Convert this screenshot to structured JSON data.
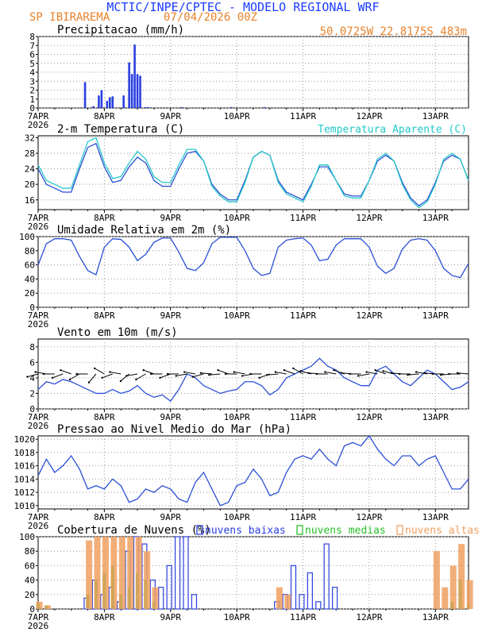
{
  "header": {
    "line1": "MCTIC/INPE/CPTEC - MODELO REGIONAL WRF",
    "station": "SP IBIRAREMA",
    "date": "07/04/2026 00Z",
    "coords": "50.0725W 22.8175S 483m"
  },
  "colors": {
    "title_blue": "#1a3cff",
    "header_orange": "#e8822a",
    "series_blue": "#2a4fd6",
    "series_cyan": "#25c8c8",
    "bar_blue": "#2a3fe0",
    "cloud_low": "#2a3fe0",
    "cloud_mid": "#28c028",
    "cloud_high": "#f0a060",
    "grid": "#999999",
    "arrow": "#000000"
  },
  "x_axis": {
    "ticks": [
      "7APR",
      "8APR",
      "9APR",
      "10APR",
      "11APR",
      "12APR",
      "13APR"
    ],
    "year": "2026",
    "x_range_hours": [
      0,
      156
    ]
  },
  "chart_data": [
    {
      "id": "precip",
      "type": "bar",
      "title": "Precipitacao (mm/h)",
      "ylim": [
        0,
        8
      ],
      "yticks": [
        0,
        1,
        2,
        3,
        4,
        5,
        6,
        7,
        8
      ],
      "x_hours": [
        17,
        20,
        22,
        23,
        25,
        26,
        27,
        31,
        33,
        34,
        35,
        36,
        37,
        39,
        40,
        52,
        70,
        82
      ],
      "values": [
        2.9,
        0.2,
        1.4,
        2.0,
        0.8,
        1.2,
        1.3,
        1.4,
        5.1,
        3.8,
        7.1,
        3.8,
        3.6,
        0.1,
        0.1,
        0.1,
        0.1,
        0.1
      ],
      "grid": true
    },
    {
      "id": "temp",
      "type": "line",
      "title": "2-m Temperatura (C)",
      "title_right": "Temperatura Aparente (C)",
      "ylim": [
        13.5,
        32.5
      ],
      "yticks": [
        16,
        20,
        24,
        28,
        32
      ],
      "x_hours": [
        0,
        3,
        6,
        9,
        12,
        15,
        18,
        21,
        24,
        27,
        30,
        33,
        36,
        39,
        42,
        45,
        48,
        51,
        54,
        57,
        60,
        63,
        66,
        69,
        72,
        75,
        78,
        81,
        84,
        87,
        90,
        93,
        96,
        99,
        102,
        105,
        108,
        111,
        114,
        117,
        120,
        123,
        126,
        129,
        132,
        135,
        138,
        141,
        144,
        147,
        150,
        153,
        156
      ],
      "series": [
        {
          "values": [
            24,
            20,
            19,
            18,
            18,
            24,
            29.5,
            30.5,
            24.5,
            20.5,
            21,
            24.5,
            27,
            25.5,
            21,
            19.5,
            19.5,
            24,
            28,
            28.5,
            26,
            20,
            17.5,
            16,
            16,
            21,
            27,
            28.5,
            27.5,
            21,
            18,
            17,
            16,
            20,
            24.5,
            24.5,
            21,
            17.5,
            17,
            17,
            21,
            26,
            27.5,
            26,
            20.5,
            16.5,
            14.5,
            16,
            20.5,
            26,
            27.5,
            26.5,
            21
          ]
        },
        {
          "values": [
            25,
            21,
            20,
            19,
            19,
            25,
            31,
            32,
            25.5,
            21.5,
            22,
            25.5,
            28.5,
            26.5,
            22,
            20.5,
            20.5,
            25,
            29,
            29,
            26,
            19.5,
            17,
            15.5,
            15.5,
            20.5,
            27,
            28.5,
            27.5,
            20.5,
            17.5,
            16.5,
            15.5,
            19.5,
            25,
            25,
            21,
            17,
            16.5,
            16.5,
            21,
            26.5,
            28,
            26,
            20,
            16,
            14,
            15.5,
            20,
            26.5,
            28,
            26.5,
            21
          ]
        }
      ],
      "grid": true
    },
    {
      "id": "rh",
      "type": "line",
      "title": "Umidade Relativa em 2m (%)",
      "ylim": [
        0,
        100
      ],
      "yticks": [
        0,
        20,
        40,
        60,
        80,
        100
      ],
      "x_hours": [
        0,
        3,
        6,
        9,
        12,
        15,
        18,
        21,
        24,
        27,
        30,
        33,
        36,
        39,
        42,
        45,
        48,
        51,
        54,
        57,
        60,
        63,
        66,
        69,
        72,
        75,
        78,
        81,
        84,
        87,
        90,
        93,
        96,
        99,
        102,
        105,
        108,
        111,
        114,
        117,
        120,
        123,
        126,
        129,
        132,
        135,
        138,
        141,
        144,
        147,
        150,
        153,
        156
      ],
      "series": [
        {
          "values": [
            60,
            90,
            97,
            97,
            95,
            72,
            52,
            46,
            85,
            97,
            96,
            85,
            66,
            75,
            92,
            98,
            98,
            78,
            55,
            52,
            63,
            90,
            99,
            99,
            99,
            80,
            55,
            45,
            48,
            85,
            95,
            97,
            98,
            88,
            66,
            68,
            88,
            97,
            97,
            97,
            85,
            58,
            48,
            55,
            82,
            95,
            97,
            95,
            80,
            55,
            45,
            42,
            62
          ]
        }
      ],
      "grid": true
    },
    {
      "id": "wind",
      "type": "line",
      "title": "Vento em 10m (m/s)",
      "ylim": [
        0,
        9
      ],
      "yticks": [
        0,
        2,
        4,
        6,
        8
      ],
      "x_hours": [
        0,
        3,
        6,
        9,
        12,
        15,
        18,
        21,
        24,
        27,
        30,
        33,
        36,
        39,
        42,
        45,
        48,
        51,
        54,
        57,
        60,
        63,
        66,
        69,
        72,
        75,
        78,
        81,
        84,
        87,
        90,
        93,
        96,
        99,
        102,
        105,
        108,
        111,
        114,
        117,
        120,
        123,
        126,
        129,
        132,
        135,
        138,
        141,
        144,
        147,
        150,
        153,
        156
      ],
      "series": [
        {
          "values": [
            2.5,
            3.5,
            3.2,
            3.8,
            3.5,
            3.0,
            2.5,
            2.0,
            2.0,
            2.5,
            2.0,
            2.3,
            3.0,
            2.0,
            1.5,
            1.8,
            1.0,
            2.5,
            4.5,
            4.0,
            3.0,
            2.5,
            2.0,
            2.3,
            2.5,
            3.5,
            3.5,
            3.0,
            1.8,
            2.5,
            4.0,
            4.5,
            5.0,
            5.5,
            6.5,
            5.5,
            5.0,
            4.0,
            3.5,
            3.0,
            3.0,
            5.0,
            5.5,
            4.5,
            3.5,
            3.0,
            4.0,
            5.0,
            4.5,
            3.5,
            2.5,
            2.8,
            3.5
          ]
        }
      ],
      "vector_angles_deg": [
        195,
        170,
        180,
        200,
        160,
        210,
        180,
        230,
        150,
        200,
        170,
        220,
        190,
        210,
        160,
        180,
        200,
        180,
        190,
        170,
        195,
        175,
        185,
        160,
        180,
        170,
        190,
        180,
        200,
        185,
        170,
        160,
        150,
        165,
        175,
        180,
        170,
        160,
        175,
        180,
        190,
        170,
        160,
        165,
        175,
        180,
        185,
        170,
        175,
        180,
        185,
        180,
        175
      ],
      "grid": true
    },
    {
      "id": "pressure",
      "type": "line",
      "title": "Pressao ao Nivel Medio do Mar (hPa)",
      "ylim": [
        1009.5,
        1020.5
      ],
      "yticks": [
        1010,
        1012,
        1014,
        1016,
        1018,
        1020
      ],
      "x_hours": [
        0,
        3,
        6,
        9,
        12,
        15,
        18,
        21,
        24,
        27,
        30,
        33,
        36,
        39,
        42,
        45,
        48,
        51,
        54,
        57,
        60,
        63,
        66,
        69,
        72,
        75,
        78,
        81,
        84,
        87,
        90,
        93,
        96,
        99,
        102,
        105,
        108,
        111,
        114,
        117,
        120,
        123,
        126,
        129,
        132,
        135,
        138,
        141,
        144,
        147,
        150,
        153,
        156
      ],
      "series": [
        {
          "values": [
            1014.5,
            1017,
            1015,
            1016,
            1017.5,
            1015.5,
            1012.5,
            1013,
            1012.5,
            1014,
            1013,
            1010.5,
            1011,
            1012.5,
            1012,
            1013,
            1012.5,
            1011,
            1010.5,
            1013.5,
            1015,
            1012.5,
            1010,
            1010.5,
            1013,
            1013.5,
            1015.5,
            1014,
            1011.5,
            1012,
            1015,
            1017,
            1017.5,
            1017,
            1018.5,
            1017,
            1016,
            1019,
            1019.5,
            1019,
            1020.5,
            1018.5,
            1017,
            1016,
            1017.5,
            1017.5,
            1016,
            1017,
            1017.5,
            1015,
            1012.5,
            1012.5,
            1014
          ]
        }
      ],
      "grid": true
    },
    {
      "id": "clouds",
      "type": "bar",
      "title": "Cobertura de Nuvens (%)",
      "legend": [
        "nuvens baixas",
        "nuvens medias",
        "nuvens altas"
      ],
      "ylim": [
        0,
        100
      ],
      "yticks": [
        0,
        20,
        40,
        60,
        80,
        100
      ],
      "x_hours": [
        0,
        3,
        6,
        9,
        12,
        15,
        18,
        21,
        24,
        27,
        30,
        33,
        36,
        39,
        42,
        45,
        48,
        51,
        54,
        57,
        60,
        63,
        66,
        69,
        72,
        75,
        78,
        81,
        84,
        87,
        90,
        93,
        96,
        99,
        102,
        105,
        108,
        111,
        114,
        117,
        120,
        123,
        126,
        129,
        132,
        135,
        138,
        141,
        144,
        147,
        150,
        153,
        156
      ],
      "series": [
        {
          "name": "nuvens baixas",
          "values": [
            0,
            0,
            0,
            0,
            0,
            0,
            15,
            40,
            20,
            30,
            10,
            80,
            100,
            90,
            40,
            30,
            60,
            100,
            100,
            20,
            0,
            0,
            0,
            0,
            0,
            0,
            0,
            0,
            0,
            10,
            20,
            60,
            20,
            50,
            10,
            90,
            30,
            0,
            0,
            0,
            0,
            0,
            0,
            0,
            0,
            0,
            0,
            0,
            0,
            0,
            0,
            0,
            0
          ]
        },
        {
          "name": "nuvens medias",
          "values": [
            8,
            5,
            0,
            0,
            0,
            0,
            20,
            40,
            50,
            60,
            20,
            30,
            50,
            40,
            10,
            0,
            0,
            0,
            0,
            0,
            0,
            0,
            0,
            0,
            0,
            0,
            0,
            0,
            0,
            0,
            0,
            0,
            0,
            0,
            0,
            0,
            0,
            0,
            0,
            0,
            0,
            0,
            0,
            0,
            0,
            0,
            0,
            0,
            0,
            0,
            10,
            40,
            5
          ]
        },
        {
          "name": "nuvens altas",
          "values": [
            10,
            5,
            0,
            0,
            0,
            0,
            95,
            100,
            100,
            100,
            100,
            100,
            100,
            80,
            30,
            0,
            0,
            0,
            0,
            0,
            0,
            0,
            0,
            0,
            0,
            0,
            0,
            0,
            0,
            30,
            20,
            0,
            0,
            0,
            0,
            0,
            0,
            0,
            0,
            0,
            0,
            0,
            0,
            0,
            0,
            0,
            0,
            0,
            80,
            30,
            60,
            90,
            40
          ]
        }
      ],
      "grid": true
    }
  ]
}
